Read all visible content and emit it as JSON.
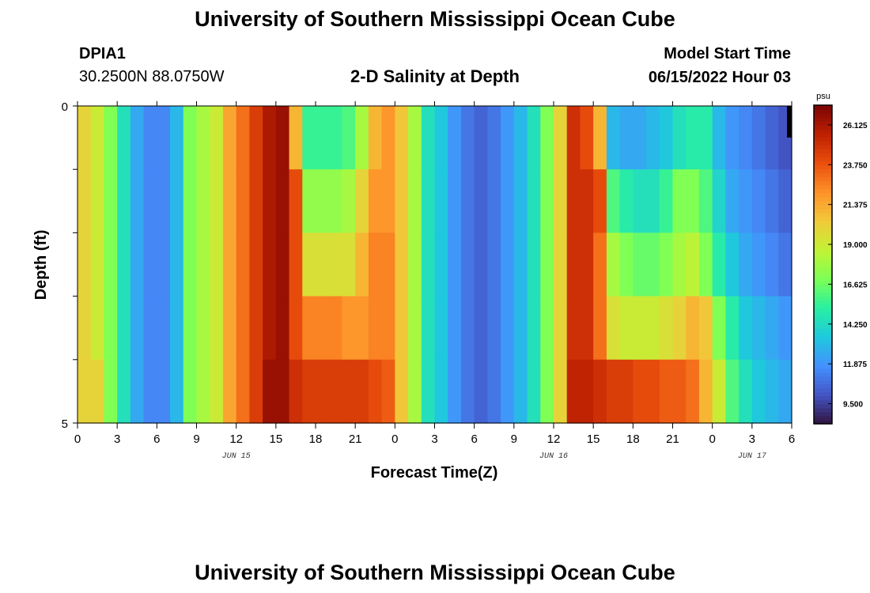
{
  "header": {
    "title": "University of Southern Mississippi Ocean Cube",
    "station_id": "DPIA1",
    "station_coords": "30.2500N  88.0750W",
    "plot_title": "2-D Salinity at Depth",
    "model_start_label": "Model Start Time",
    "model_start_value": "06/15/2022 Hour 03"
  },
  "footer": {
    "title": "University of Southern Mississippi Ocean Cube"
  },
  "colorbar": {
    "unit": "psu",
    "min": 8.3,
    "max": 27.3,
    "tick_labels": [
      "26.125",
      "23.750",
      "21.375",
      "19.000",
      "16.625",
      "14.250",
      "11.875",
      "9.500"
    ],
    "tick_values": [
      26.125,
      23.75,
      21.375,
      19.0,
      16.625,
      14.25,
      11.875,
      9.5
    ]
  },
  "chart_data": {
    "type": "heatmap",
    "title": "2-D Salinity at Depth",
    "xlabel": "Forecast Time(Z)",
    "ylabel": "Depth (ft)",
    "x_tick_labels": [
      "0",
      "3",
      "6",
      "9",
      "12",
      "15",
      "18",
      "21",
      "0",
      "3",
      "6",
      "9",
      "12",
      "15",
      "18",
      "21",
      "0",
      "3",
      "6"
    ],
    "x_tick_hours": [
      0,
      3,
      6,
      9,
      12,
      15,
      18,
      21,
      24,
      27,
      30,
      33,
      36,
      39,
      42,
      45,
      48,
      51,
      54
    ],
    "x_range_hours": [
      0,
      54
    ],
    "date_labels": [
      {
        "label": "JUN 15",
        "hour": 12
      },
      {
        "label": "JUN 16",
        "hour": 36
      },
      {
        "label": "JUN 17",
        "hour": 51
      }
    ],
    "y_tick_labels": [
      "0",
      "5"
    ],
    "y_range": [
      0,
      5
    ],
    "depth_levels": [
      0,
      1,
      2,
      3,
      4,
      5
    ],
    "unit": "psu",
    "salinity_profiles": [
      {
        "hour": 0,
        "values": [
          20,
          20,
          20,
          20,
          20,
          21
        ]
      },
      {
        "hour": 1,
        "values": [
          19,
          19,
          19,
          19,
          20,
          20
        ]
      },
      {
        "hour": 2,
        "values": [
          17,
          17,
          17,
          17,
          17,
          17
        ]
      },
      {
        "hour": 3,
        "values": [
          14.5,
          14.5,
          14.5,
          14.5,
          14.5,
          14.5
        ]
      },
      {
        "hour": 4,
        "values": [
          12.5,
          12.5,
          12.5,
          12.5,
          12.5,
          12.5
        ]
      },
      {
        "hour": 5,
        "values": [
          11.5,
          11.5,
          11.5,
          11.5,
          11.5,
          11.5
        ]
      },
      {
        "hour": 6,
        "values": [
          11.5,
          11.5,
          11.5,
          11.5,
          11.5,
          11.5
        ]
      },
      {
        "hour": 7,
        "values": [
          13,
          13,
          13,
          13,
          13,
          13
        ]
      },
      {
        "hour": 8,
        "values": [
          17,
          17,
          17,
          17,
          17,
          17
        ]
      },
      {
        "hour": 9,
        "values": [
          18,
          18,
          18,
          18,
          18,
          18
        ]
      },
      {
        "hour": 10,
        "values": [
          19,
          19,
          19,
          19,
          19,
          19
        ]
      },
      {
        "hour": 11,
        "values": [
          21.5,
          21.5,
          21.5,
          21.5,
          21.5,
          21.5
        ]
      },
      {
        "hour": 12,
        "values": [
          23,
          23,
          23,
          23,
          23,
          23
        ]
      },
      {
        "hour": 13,
        "values": [
          24.5,
          24.5,
          24.5,
          24.5,
          24.5,
          25
        ]
      },
      {
        "hour": 14,
        "values": [
          26,
          26,
          26,
          26,
          26.5,
          26.5
        ]
      },
      {
        "hour": 15,
        "values": [
          26.5,
          26.5,
          26.5,
          26.5,
          26.5,
          26.5
        ]
      },
      {
        "hour": 16,
        "values": [
          21,
          24,
          24,
          24,
          25,
          26
        ]
      },
      {
        "hour": 17,
        "values": [
          15.5,
          17.5,
          19.5,
          22.5,
          24.5,
          25.5
        ]
      },
      {
        "hour": 18,
        "values": [
          15.5,
          17.5,
          19.5,
          22.5,
          24.5,
          25.5
        ]
      },
      {
        "hour": 19,
        "values": [
          15.5,
          17.5,
          19.5,
          22.5,
          24.5,
          25.5
        ]
      },
      {
        "hour": 20,
        "values": [
          16,
          18,
          19.5,
          22,
          24.5,
          25.5
        ]
      },
      {
        "hour": 21,
        "values": [
          18,
          20,
          21,
          22,
          24.5,
          25
        ]
      },
      {
        "hour": 22,
        "values": [
          21,
          22,
          22.5,
          22.5,
          24,
          24.5
        ]
      },
      {
        "hour": 23,
        "values": [
          22,
          22,
          22.5,
          22.5,
          23.5,
          24
        ]
      },
      {
        "hour": 24,
        "values": [
          20.5,
          20.5,
          20.5,
          20.5,
          20.5,
          21
        ]
      },
      {
        "hour": 25,
        "values": [
          18,
          18,
          18,
          18,
          18,
          18
        ]
      },
      {
        "hour": 26,
        "values": [
          14.5,
          14.5,
          14.5,
          14.5,
          14.5,
          14.5
        ]
      },
      {
        "hour": 27,
        "values": [
          13.5,
          13.5,
          13.5,
          13.5,
          13.5,
          13.5
        ]
      },
      {
        "hour": 28,
        "values": [
          12,
          12,
          12,
          12,
          12,
          12
        ]
      },
      {
        "hour": 29,
        "values": [
          11,
          11,
          11,
          11,
          11,
          11
        ]
      },
      {
        "hour": 30,
        "values": [
          10.5,
          10.5,
          10.5,
          10.5,
          10.5,
          10.5
        ]
      },
      {
        "hour": 31,
        "values": [
          11,
          11,
          11,
          11,
          11,
          11
        ]
      },
      {
        "hour": 32,
        "values": [
          12,
          12,
          12,
          12,
          12,
          12
        ]
      },
      {
        "hour": 33,
        "values": [
          13,
          13,
          13,
          13,
          13,
          13
        ]
      },
      {
        "hour": 34,
        "values": [
          14.5,
          14.5,
          14.5,
          14.5,
          14.5,
          14.5
        ]
      },
      {
        "hour": 35,
        "values": [
          17,
          17,
          17,
          17,
          17,
          17
        ]
      },
      {
        "hour": 36,
        "values": [
          20,
          20,
          20,
          20,
          20,
          20
        ]
      },
      {
        "hour": 37,
        "values": [
          25,
          25,
          25,
          25,
          25.5,
          26
        ]
      },
      {
        "hour": 38,
        "values": [
          24,
          25,
          25,
          25,
          25.5,
          26
        ]
      },
      {
        "hour": 39,
        "values": [
          21,
          24,
          23,
          23,
          25,
          26
        ]
      },
      {
        "hour": 40,
        "values": [
          13,
          16,
          18,
          19.5,
          24.5,
          25.5
        ]
      },
      {
        "hour": 41,
        "values": [
          12.5,
          15,
          17,
          19,
          24.5,
          25
        ]
      },
      {
        "hour": 42,
        "values": [
          12.5,
          14.5,
          16.5,
          19,
          24,
          25
        ]
      },
      {
        "hour": 43,
        "values": [
          13,
          14.5,
          16.5,
          19,
          24,
          25
        ]
      },
      {
        "hour": 44,
        "values": [
          13.5,
          15.5,
          17,
          19.5,
          23.5,
          24.5
        ]
      },
      {
        "hour": 45,
        "values": [
          14.5,
          17,
          18,
          20,
          23.5,
          24
        ]
      },
      {
        "hour": 46,
        "values": [
          15,
          17,
          18.5,
          21,
          23,
          23.5
        ]
      },
      {
        "hour": 47,
        "values": [
          15,
          16,
          17,
          20.5,
          21,
          22
        ]
      },
      {
        "hour": 48,
        "values": [
          13,
          14,
          15,
          17,
          19,
          19
        ]
      },
      {
        "hour": 49,
        "values": [
          12,
          12.5,
          13.5,
          15,
          16,
          16
        ]
      },
      {
        "hour": 50,
        "values": [
          11.5,
          12,
          12.5,
          13.5,
          14.5,
          14.5
        ]
      },
      {
        "hour": 51,
        "values": [
          11,
          11.5,
          12,
          13,
          13.5,
          13.5
        ]
      },
      {
        "hour": 52,
        "values": [
          10.5,
          11,
          11.5,
          12.5,
          13,
          13
        ]
      },
      {
        "hour": 53,
        "values": [
          10,
          10.5,
          11,
          12,
          12.5,
          12.5
        ]
      }
    ]
  },
  "palette": {
    "stops": [
      "#30123b",
      "#4454c4",
      "#4490fe",
      "#1fc8de",
      "#29efa2",
      "#7dff56",
      "#c1f334",
      "#f1ca3a",
      "#fe922a",
      "#ea4f0d",
      "#be2102",
      "#7a0403"
    ]
  }
}
